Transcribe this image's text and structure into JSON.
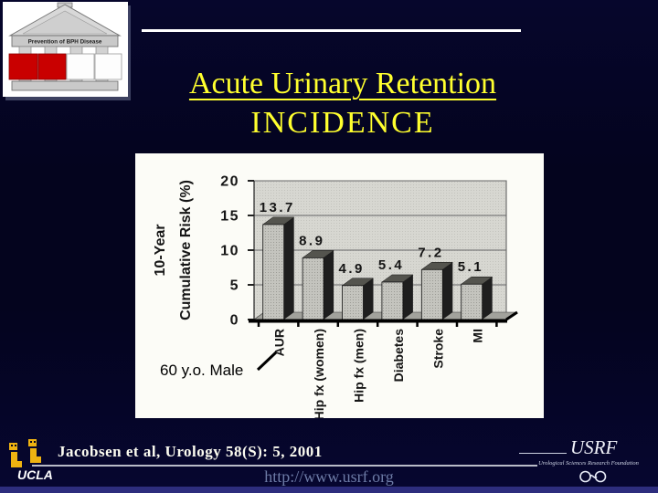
{
  "slide": {
    "title_line1": "Acute Urinary Retention",
    "title_line2": "INCIDENCE",
    "citation": "Jacobsen et al, Urology 58(S): 5, 2001",
    "url": "http://www.usrf.org"
  },
  "logos": {
    "bph_banner": "Prevention of BPH Disease",
    "ucla": "UCLA",
    "usrf_name": "USRF",
    "usrf_subtitle": "Urological Sciences Research Foundation"
  },
  "chart_data": {
    "type": "bar",
    "style": "3d-grayscale-scanned",
    "categories": [
      "AUR",
      "Hip fx (women)",
      "Hip fx (men)",
      "Diabetes",
      "Stroke",
      "MI"
    ],
    "values": [
      13.7,
      8.9,
      4.9,
      5.4,
      7.2,
      5.1
    ],
    "ylabel_line1": "10-Year",
    "ylabel_line2": "Cumulative Risk (%)",
    "yticks": [
      0,
      5,
      10,
      15,
      20
    ],
    "ylim": [
      0,
      20
    ],
    "grid": true,
    "legend": false,
    "annotation": "60 y.o. Male"
  },
  "colors": {
    "background_navy": "#05051f",
    "title_yellow": "#ffff2e",
    "citation_white": "#fcfcf0",
    "url_slate": "#6d7ba6",
    "bottom_strip_blue": "#2d2d7d",
    "bph_red": "#c90000",
    "ucla_gold": "#eeb211",
    "bar_front_gray": "#c4c4be",
    "bar_side_black": "#1e1e1e"
  }
}
